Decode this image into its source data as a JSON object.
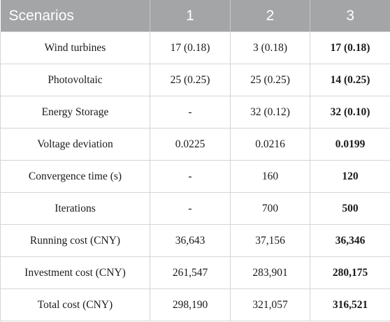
{
  "table": {
    "headers": [
      "Scenarios",
      "1",
      "2",
      "3"
    ],
    "rows": [
      [
        "Wind turbines",
        "17 (0.18)",
        "3 (0.18)",
        "17 (0.18)"
      ],
      [
        "Photovoltaic",
        "25 (0.25)",
        "25 (0.25)",
        "14 (0.25)"
      ],
      [
        "Energy Storage",
        "-",
        "32 (0.12)",
        "32 (0.10)"
      ],
      [
        "Voltage deviation",
        "0.0225",
        "0.0216",
        "0.0199"
      ],
      [
        "Convergence time (s)",
        "-",
        "160",
        "120"
      ],
      [
        "Iterations",
        "-",
        "700",
        "500"
      ],
      [
        "Running cost (CNY)",
        "36,643",
        "37,156",
        "36,346"
      ],
      [
        "Investment cost (CNY)",
        "261,547",
        "283,901",
        "280,175"
      ],
      [
        "Total cost (CNY)",
        "298,190",
        "321,057",
        "316,521"
      ]
    ],
    "colors": {
      "header_bg": "#a3a5a7",
      "header_text": "#ffffff",
      "border": "#d5d5d5"
    }
  }
}
